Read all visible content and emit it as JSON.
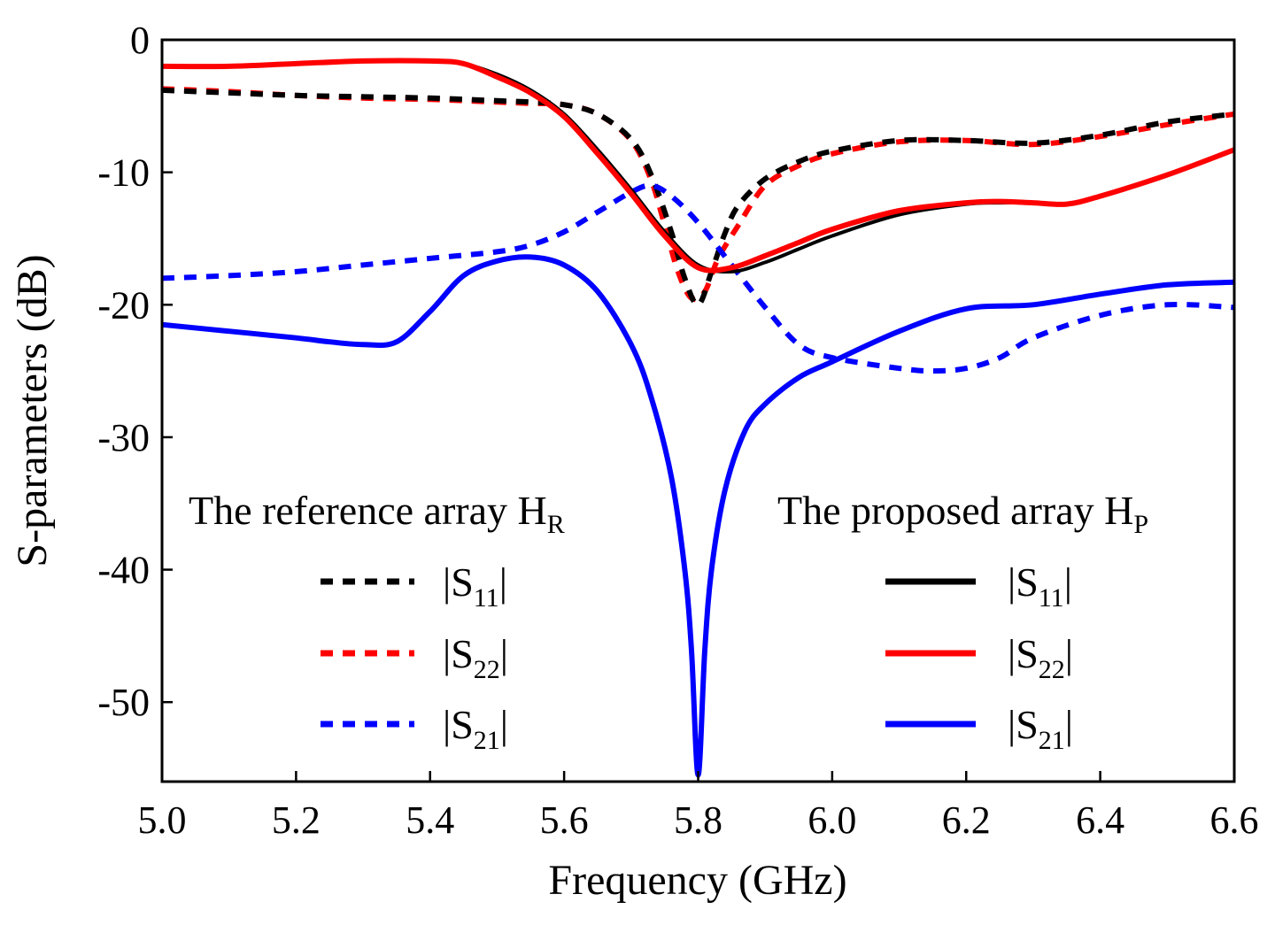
{
  "chart_data": {
    "type": "line",
    "title": "",
    "xlabel": "Frequency (GHz)",
    "ylabel": "S-parameters (dB)",
    "xlim": [
      5.0,
      6.6
    ],
    "ylim": [
      -56,
      0
    ],
    "xticks": [
      "5.0",
      "5.2",
      "5.4",
      "5.6",
      "5.8",
      "6.0",
      "6.2",
      "6.4",
      "6.6"
    ],
    "yticks": [
      "0",
      "-10",
      "-20",
      "-30",
      "-40",
      "-50"
    ],
    "grid": false,
    "legends": [
      {
        "title": "The reference array H",
        "title_sub": "R",
        "placement": "middle-left"
      },
      {
        "title": "The proposed array H",
        "title_sub": "P",
        "placement": "middle-right"
      }
    ],
    "series": [
      {
        "id": "ref_s11",
        "group": 0,
        "name": "|S11|",
        "label_main": "|S",
        "label_sub": "11",
        "label_end": "|",
        "color": "#000000",
        "style": "dashed",
        "x": [
          5.0,
          5.1,
          5.2,
          5.3,
          5.4,
          5.5,
          5.55,
          5.6,
          5.65,
          5.7,
          5.73,
          5.76,
          5.78,
          5.8,
          5.82,
          5.84,
          5.86,
          5.9,
          5.95,
          6.0,
          6.1,
          6.2,
          6.3,
          6.4,
          6.5,
          6.6
        ],
        "y": [
          -3.8,
          -4.0,
          -4.2,
          -4.3,
          -4.4,
          -4.6,
          -4.7,
          -4.9,
          -5.6,
          -7.5,
          -10.2,
          -14.5,
          -18.0,
          -20.0,
          -17.5,
          -14.6,
          -12.5,
          -10.5,
          -9.2,
          -8.4,
          -7.6,
          -7.6,
          -7.8,
          -7.2,
          -6.2,
          -5.6
        ]
      },
      {
        "id": "ref_s22",
        "group": 0,
        "name": "|S22|",
        "label_main": "|S",
        "label_sub": "22",
        "label_end": "|",
        "color": "#ff0000",
        "style": "dashed",
        "x": [
          5.0,
          5.1,
          5.2,
          5.3,
          5.4,
          5.5,
          5.55,
          5.6,
          5.65,
          5.7,
          5.73,
          5.75,
          5.77,
          5.79,
          5.81,
          5.83,
          5.86,
          5.9,
          5.95,
          6.0,
          6.1,
          6.2,
          6.3,
          6.4,
          6.5,
          6.6
        ],
        "y": [
          -3.7,
          -3.9,
          -4.2,
          -4.4,
          -4.5,
          -4.7,
          -4.8,
          -4.9,
          -5.6,
          -7.6,
          -10.6,
          -14.0,
          -17.5,
          -19.5,
          -19.0,
          -16.5,
          -14.0,
          -11.0,
          -9.5,
          -8.6,
          -7.7,
          -7.6,
          -7.9,
          -7.3,
          -6.4,
          -5.6
        ]
      },
      {
        "id": "ref_s21",
        "group": 0,
        "name": "|S21|",
        "label_main": "|S",
        "label_sub": "21",
        "label_end": "|",
        "color": "#0000ff",
        "style": "dashed",
        "x": [
          5.0,
          5.1,
          5.2,
          5.3,
          5.4,
          5.5,
          5.55,
          5.6,
          5.65,
          5.7,
          5.73,
          5.76,
          5.8,
          5.85,
          5.9,
          5.95,
          6.0,
          6.1,
          6.15,
          6.2,
          6.25,
          6.3,
          6.4,
          6.5,
          6.6
        ],
        "y": [
          -18.0,
          -17.8,
          -17.5,
          -17.0,
          -16.5,
          -16.0,
          -15.5,
          -14.5,
          -13.0,
          -11.5,
          -11.0,
          -11.8,
          -13.8,
          -17.0,
          -20.2,
          -23.0,
          -24.0,
          -24.8,
          -25.0,
          -24.8,
          -24.0,
          -22.5,
          -20.8,
          -20.0,
          -20.2
        ]
      },
      {
        "id": "prop_s11",
        "group": 1,
        "name": "|S11|",
        "label_main": "|S",
        "label_sub": "11",
        "label_end": "|",
        "color": "#000000",
        "style": "solid",
        "x": [
          5.0,
          5.1,
          5.2,
          5.3,
          5.4,
          5.45,
          5.5,
          5.55,
          5.6,
          5.65,
          5.7,
          5.75,
          5.8,
          5.85,
          5.9,
          5.95,
          6.0,
          6.1,
          6.2,
          6.25,
          6.3,
          6.35,
          6.4,
          6.5,
          6.6
        ],
        "y": [
          -2.0,
          -2.0,
          -1.8,
          -1.6,
          -1.6,
          -1.8,
          -2.6,
          -3.8,
          -5.6,
          -8.3,
          -11.3,
          -14.5,
          -17.0,
          -17.5,
          -16.8,
          -15.8,
          -14.8,
          -13.2,
          -12.4,
          -12.3,
          -12.3,
          -12.4,
          -11.8,
          -10.2,
          -8.3
        ]
      },
      {
        "id": "prop_s22",
        "group": 1,
        "name": "|S22|",
        "label_main": "|S",
        "label_sub": "22",
        "label_end": "|",
        "color": "#ff0000",
        "style": "solid",
        "x": [
          5.0,
          5.1,
          5.2,
          5.3,
          5.4,
          5.45,
          5.5,
          5.55,
          5.6,
          5.65,
          5.7,
          5.75,
          5.8,
          5.85,
          5.9,
          5.95,
          6.0,
          6.1,
          6.2,
          6.25,
          6.3,
          6.35,
          6.4,
          6.5,
          6.6
        ],
        "y": [
          -2.0,
          -2.0,
          -1.8,
          -1.6,
          -1.6,
          -1.8,
          -2.8,
          -4.0,
          -5.8,
          -8.6,
          -11.6,
          -14.8,
          -17.2,
          -17.2,
          -16.3,
          -15.3,
          -14.3,
          -12.9,
          -12.3,
          -12.2,
          -12.3,
          -12.4,
          -11.8,
          -10.2,
          -8.3
        ]
      },
      {
        "id": "prop_s21",
        "group": 1,
        "name": "|S21|",
        "label_main": "|S",
        "label_sub": "21",
        "label_end": "|",
        "color": "#0000ff",
        "style": "solid",
        "x": [
          5.0,
          5.1,
          5.2,
          5.25,
          5.3,
          5.35,
          5.4,
          5.45,
          5.5,
          5.55,
          5.6,
          5.65,
          5.7,
          5.73,
          5.76,
          5.78,
          5.79,
          5.8,
          5.81,
          5.82,
          5.84,
          5.87,
          5.9,
          5.95,
          6.0,
          6.1,
          6.2,
          6.3,
          6.4,
          6.5,
          6.6
        ],
        "y": [
          -21.5,
          -22.0,
          -22.5,
          -22.8,
          -23.0,
          -22.8,
          -20.5,
          -17.8,
          -16.7,
          -16.4,
          -17.0,
          -19.0,
          -23.0,
          -27.0,
          -33.0,
          -40.0,
          -46.0,
          -55.5,
          -46.0,
          -40.0,
          -34.0,
          -29.5,
          -27.5,
          -25.5,
          -24.3,
          -22.0,
          -20.3,
          -20.0,
          -19.2,
          -18.5,
          -18.3
        ]
      }
    ]
  }
}
